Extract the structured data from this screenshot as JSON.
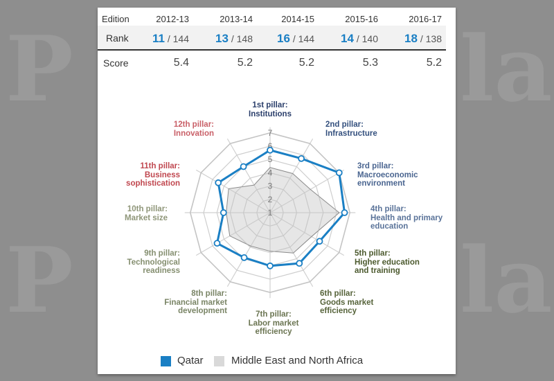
{
  "watermark": "Peninsula",
  "table": {
    "header_label": "Edition",
    "editions": [
      "2012-13",
      "2013-14",
      "2014-15",
      "2015-16",
      "2016-17"
    ],
    "rank_label": "Rank",
    "ranks": [
      {
        "rank": "11",
        "total": "/ 144"
      },
      {
        "rank": "13",
        "total": "/ 148"
      },
      {
        "rank": "16",
        "total": "/ 144"
      },
      {
        "rank": "14",
        "total": "/ 140"
      },
      {
        "rank": "18",
        "total": "/ 138"
      }
    ],
    "score_label": "Score",
    "scores": [
      "5.4",
      "5.2",
      "5.2",
      "5.3",
      "5.2"
    ]
  },
  "chart_data": {
    "type": "radar",
    "scale_min": 1,
    "scale_max": 7,
    "tick_labels": [
      "1",
      "2",
      "3",
      "4",
      "5",
      "6",
      "7"
    ],
    "axes": [
      {
        "line1": "1st pillar:",
        "line2": "Institutions",
        "line3": ""
      },
      {
        "line1": "2nd pillar:",
        "line2": "Infrastructure",
        "line3": ""
      },
      {
        "line1": "3rd pillar:",
        "line2": "Macroeconomic",
        "line3": "environment"
      },
      {
        "line1": "4th pillar:",
        "line2": "Health and primary",
        "line3": "education"
      },
      {
        "line1": "5th pillar:",
        "line2": "Higher education",
        "line3": "and training"
      },
      {
        "line1": "6th pillar:",
        "line2": "Goods market",
        "line3": "efficiency"
      },
      {
        "line1": "7th pillar:",
        "line2": "Labor market",
        "line3": "efficiency"
      },
      {
        "line1": "8th pillar:",
        "line2": "Financial market",
        "line3": "development"
      },
      {
        "line1": "9th pillar:",
        "line2": "Technological",
        "line3": "readiness"
      },
      {
        "line1": "10th pillar:",
        "line2": "Market size",
        "line3": ""
      },
      {
        "line1": "11th pillar:",
        "line2": "Business",
        "line3": "sophistication"
      },
      {
        "line1": "12th pillar:",
        "line2": "Innovation",
        "line3": ""
      }
    ],
    "axis_label_colors": [
      "#2b3f6b",
      "#34507e",
      "#4a6590",
      "#5a7399",
      "#4c5a2e",
      "#56633a",
      "#6b7552",
      "#7a8566",
      "#858f70",
      "#8f9679",
      "#c0474f",
      "#c96068"
    ],
    "series": [
      {
        "name": "Qatar",
        "color": "#1a7fc4",
        "values": [
          5.7,
          5.7,
          7.0,
          6.6,
          5.3,
          5.4,
          5.0,
          4.9,
          5.6,
          4.5,
          5.5,
          5.0
        ]
      },
      {
        "name": "Middle East and North Africa",
        "color": "#d9d9d9",
        "values": [
          4.4,
          4.4,
          4.5,
          6.2,
          4.6,
          4.5,
          3.9,
          3.9,
          4.5,
          4.3,
          4.6,
          3.4
        ]
      }
    ],
    "legend_position": "bottom"
  }
}
